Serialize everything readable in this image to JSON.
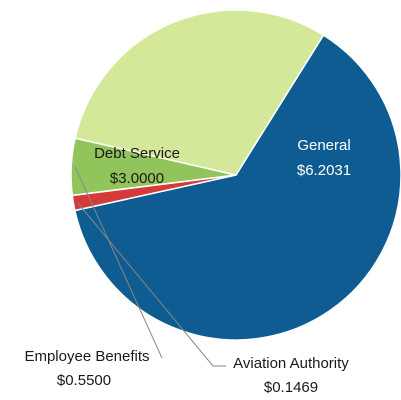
{
  "chart_data": {
    "type": "pie",
    "slices": [
      {
        "category": "General",
        "label": "General",
        "value_label": "$6.2031",
        "value": 6.2031,
        "color": "#0E5C92"
      },
      {
        "category": "Aviation Authority",
        "label": "Aviation Authority",
        "value_label": "$0.1469",
        "value": 0.1469,
        "color": "#D33B3B"
      },
      {
        "category": "Employee Benefits",
        "label": "Employee Benefits",
        "value_label": "$0.5500",
        "value": 0.55,
        "color": "#92C45C"
      },
      {
        "category": "Debt Service",
        "label": "Debt Service",
        "value_label": "$3.0000",
        "value": 3.0,
        "color": "#D4E89A"
      }
    ]
  }
}
